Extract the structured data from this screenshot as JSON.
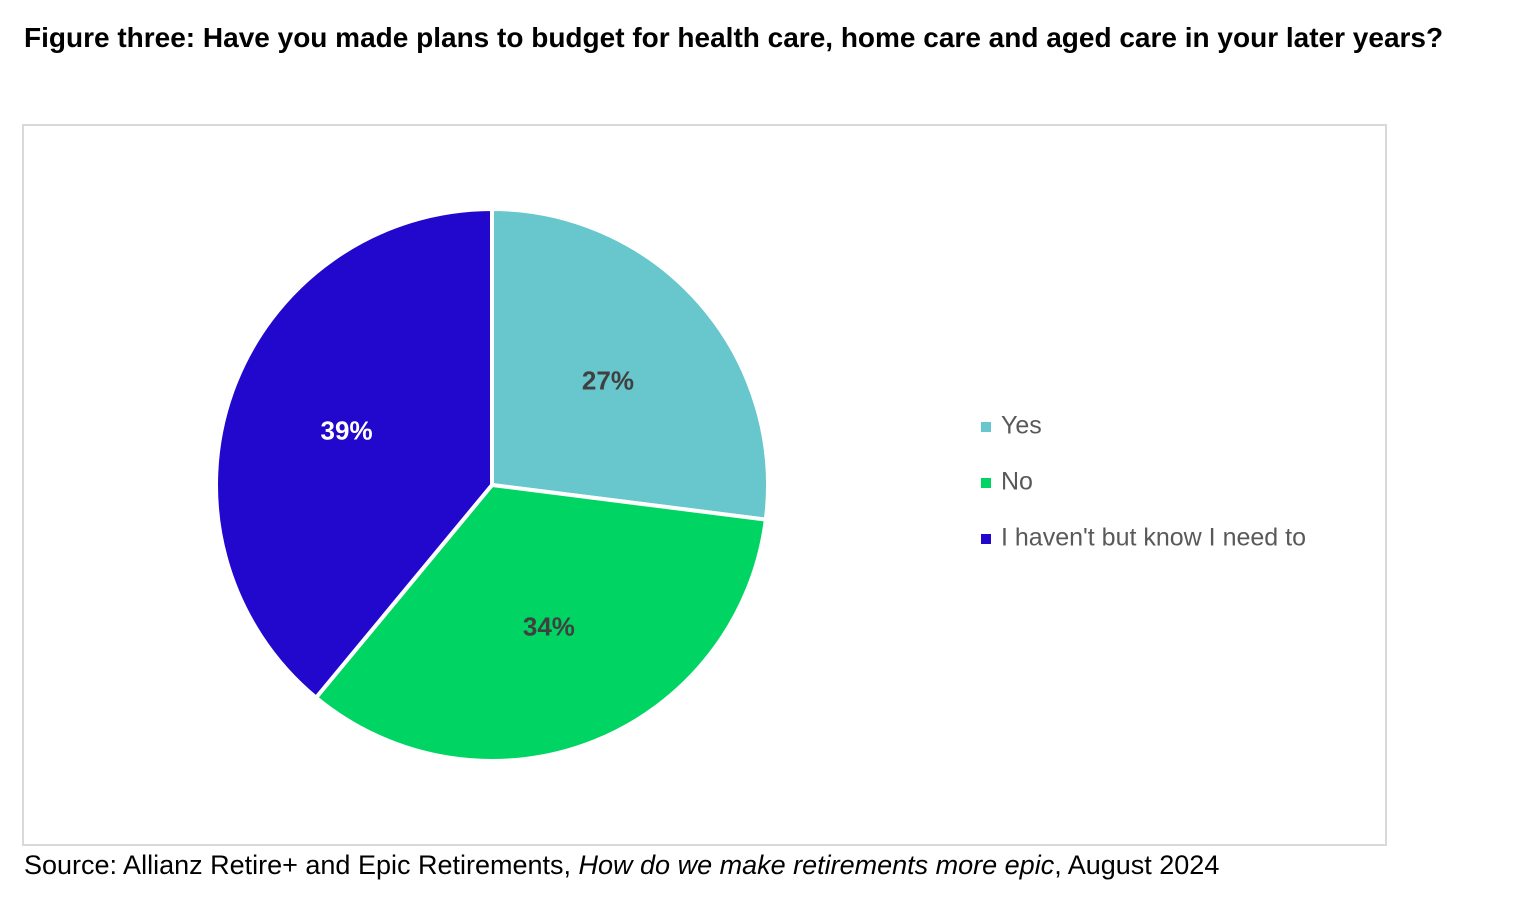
{
  "chart_data": {
    "type": "pie",
    "title": "Figure three: Have you made plans to budget for health care, home care and aged care in your later years?",
    "categories": [
      "Yes",
      "No",
      "I haven't but know I need to"
    ],
    "values": [
      27,
      34,
      39
    ],
    "value_labels": [
      "27%",
      "34%",
      "39%"
    ],
    "colors": [
      "#67c7cc",
      "#00d563",
      "#2108cc"
    ],
    "legend": "right",
    "source": {
      "text": "Source: Allianz Retire+ and Epic Retirements, ",
      "publication": "How do we make retirements more epic",
      "date": ", August 2024"
    }
  }
}
